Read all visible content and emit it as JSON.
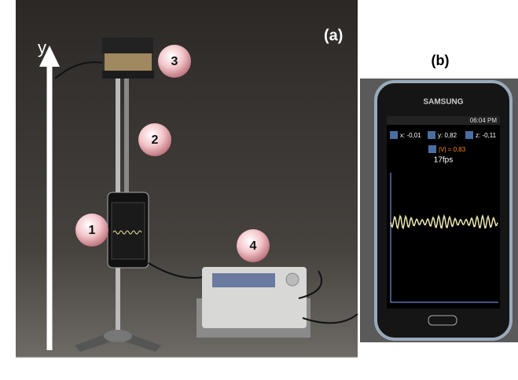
{
  "panel_a": {
    "label": "(a)",
    "axis_label": "y",
    "markers": [
      "1",
      "2",
      "3",
      "4"
    ]
  },
  "panel_b": {
    "label": "(b)",
    "phone": {
      "brand": "SAMSUNG",
      "time": "06:04 PM",
      "checkboxes": [
        "x: -0,01",
        "y: 0,82",
        "z: -0,11"
      ],
      "magnitude": "|V| = 0,83",
      "fps": "17fps"
    }
  }
}
